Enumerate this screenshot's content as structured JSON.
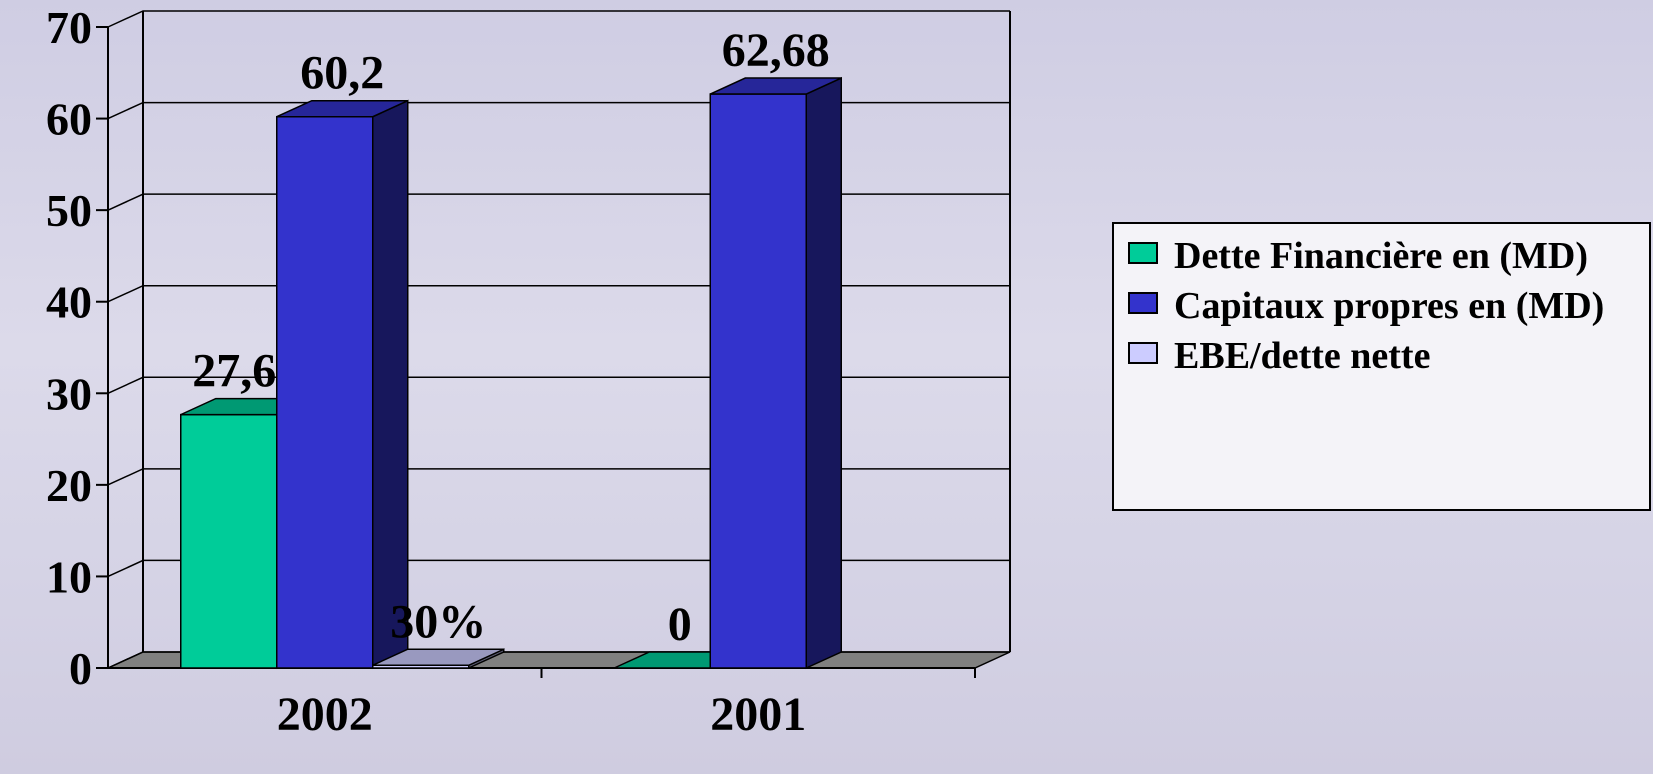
{
  "chart_data": {
    "type": "bar3d",
    "categories": [
      "2002",
      "2001"
    ],
    "series": [
      {
        "name": "Dette Financière en (MD)",
        "color": "#00cc99",
        "values": [
          27.67,
          0
        ],
        "value_labels": [
          "27,67",
          "0"
        ]
      },
      {
        "name": "Capitaux propres en (MD)",
        "color": "#3333cc",
        "values": [
          60.2,
          62.68
        ],
        "value_labels": [
          "60,2",
          "62,68"
        ]
      },
      {
        "name": "EBE/dette nette",
        "color": "#ccccff",
        "values": [
          0.3,
          null
        ],
        "value_labels": [
          "30%",
          null
        ]
      }
    ],
    "ylim": [
      0,
      70
    ],
    "yticks": [
      0,
      10,
      20,
      30,
      40,
      50,
      60,
      70
    ],
    "grid": true,
    "legend": "right"
  }
}
